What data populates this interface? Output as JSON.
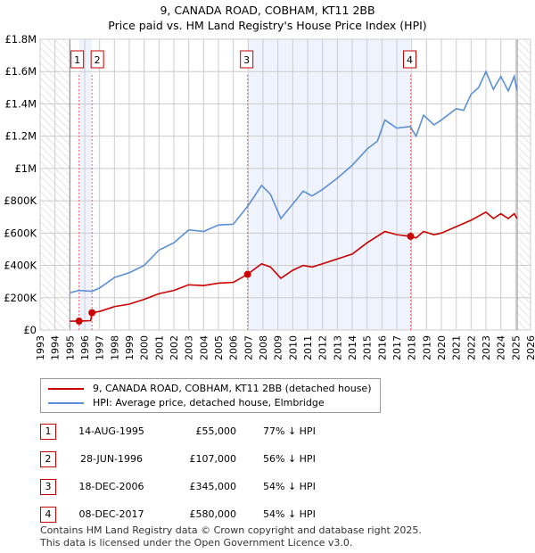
{
  "chart_data": {
    "type": "line",
    "title": "9, CANADA ROAD, COBHAM, KT11 2BB",
    "subtitle": "Price paid vs. HM Land Registry's House Price Index (HPI)",
    "xlim": [
      1993,
      2026
    ],
    "ylim": [
      0,
      1800000
    ],
    "x_ticks": [
      "1993",
      "1994",
      "1995",
      "1996",
      "1997",
      "1998",
      "1999",
      "2000",
      "2001",
      "2002",
      "2003",
      "2004",
      "2005",
      "2006",
      "2007",
      "2008",
      "2009",
      "2010",
      "2011",
      "2012",
      "2013",
      "2014",
      "2015",
      "2016",
      "2017",
      "2018",
      "2019",
      "2020",
      "2021",
      "2022",
      "2023",
      "2024",
      "2025",
      "2026"
    ],
    "y_ticks": [
      {
        "v": 0,
        "label": "£0"
      },
      {
        "v": 200000,
        "label": "£200K"
      },
      {
        "v": 400000,
        "label": "£400K"
      },
      {
        "v": 600000,
        "label": "£600K"
      },
      {
        "v": 800000,
        "label": "£800K"
      },
      {
        "v": 1000000,
        "label": "£1M"
      },
      {
        "v": 1200000,
        "label": "£1.2M"
      },
      {
        "v": 1400000,
        "label": "£1.4M"
      },
      {
        "v": 1600000,
        "label": "£1.6M"
      },
      {
        "v": 1800000,
        "label": "£1.8M"
      }
    ],
    "grid": true,
    "series": [
      {
        "name": "9, CANADA ROAD, COBHAM, KT11 2BB (detached house)",
        "color": "#cc0000",
        "x": [
          1995.0,
          1995.6,
          1996.4,
          1996.5,
          1997,
          1998,
          1999,
          2000,
          2001,
          2002,
          2003,
          2004,
          2005,
          2006,
          2006.96,
          2007.9,
          2008.5,
          2009.2,
          2010,
          2010.7,
          2011.3,
          2012,
          2013,
          2014,
          2015,
          2016.2,
          2017,
          2017.93,
          2018.3,
          2018.8,
          2019.5,
          2020,
          2021,
          2022,
          2023,
          2023.5,
          2024,
          2024.5,
          2024.9,
          2025.1
        ],
        "y": [
          55000,
          55000,
          58000,
          107000,
          115000,
          145000,
          160000,
          190000,
          225000,
          245000,
          280000,
          275000,
          290000,
          295000,
          345000,
          410000,
          390000,
          320000,
          370000,
          400000,
          390000,
          410000,
          440000,
          470000,
          540000,
          610000,
          590000,
          580000,
          570000,
          610000,
          590000,
          600000,
          640000,
          680000,
          730000,
          690000,
          720000,
          690000,
          720000,
          690000
        ]
      },
      {
        "name": "HPI: Average price, detached house, Elmbridge",
        "color": "#5b8fd6",
        "x": [
          1995.0,
          1995.6,
          1996.5,
          1997,
          1998,
          1999,
          2000,
          2001,
          2002,
          2003,
          2004,
          2005,
          2006,
          2007,
          2007.9,
          2008.5,
          2009.2,
          2010,
          2010.7,
          2011.3,
          2012,
          2013,
          2014,
          2015,
          2015.7,
          2016.2,
          2017,
          2017.9,
          2018.3,
          2018.8,
          2019.5,
          2020,
          2021,
          2021.5,
          2022,
          2022.5,
          2023,
          2023.5,
          2024,
          2024.5,
          2024.9,
          2025.1
        ],
        "y": [
          230000,
          245000,
          240000,
          260000,
          325000,
          355000,
          400000,
          495000,
          540000,
          620000,
          610000,
          650000,
          655000,
          770000,
          895000,
          840000,
          690000,
          780000,
          860000,
          830000,
          870000,
          940000,
          1020000,
          1120000,
          1170000,
          1300000,
          1250000,
          1260000,
          1200000,
          1330000,
          1270000,
          1300000,
          1370000,
          1360000,
          1460000,
          1500000,
          1600000,
          1490000,
          1570000,
          1480000,
          1570000,
          1480000
        ]
      }
    ],
    "sales": [
      {
        "n": "1",
        "x": 1995.62,
        "price": 55000
      },
      {
        "n": "2",
        "x": 1996.49,
        "price": 107000
      },
      {
        "n": "3",
        "x": 2006.96,
        "price": 345000
      },
      {
        "n": "4",
        "x": 2017.93,
        "price": 580000
      }
    ],
    "hatched_ranges": [
      [
        1993,
        1995
      ],
      [
        2025.1,
        2026
      ]
    ]
  },
  "header": {
    "title": "9, CANADA ROAD, COBHAM, KT11 2BB",
    "subtitle": "Price paid vs. HM Land Registry's House Price Index (HPI)"
  },
  "legend": {
    "items": [
      {
        "label": "9, CANADA ROAD, COBHAM, KT11 2BB (detached house)",
        "color": "#cc0000"
      },
      {
        "label": "HPI: Average price, detached house, Elmbridge",
        "color": "#5b8fd6"
      }
    ]
  },
  "table": [
    {
      "n": "1",
      "date": "14-AUG-1995",
      "price": "£55,000",
      "hpi": "77% ↓ HPI"
    },
    {
      "n": "2",
      "date": "28-JUN-1996",
      "price": "£107,000",
      "hpi": "56% ↓ HPI"
    },
    {
      "n": "3",
      "date": "18-DEC-2006",
      "price": "£345,000",
      "hpi": "54% ↓ HPI"
    },
    {
      "n": "4",
      "date": "08-DEC-2017",
      "price": "£580,000",
      "hpi": "54% ↓ HPI"
    }
  ],
  "footer": {
    "line1": "Contains HM Land Registry data © Crown copyright and database right 2025.",
    "line2": "This data is licensed under the Open Government Licence v3.0."
  }
}
